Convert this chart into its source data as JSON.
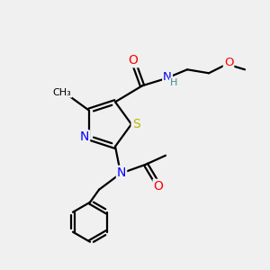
{
  "bg_color": "#f0f0f0",
  "atom_colors": {
    "C": "#000000",
    "N": "#0000ff",
    "O": "#ff0000",
    "S": "#b8b800",
    "H": "#4a8a8a"
  },
  "bond_color": "#000000",
  "figsize": [
    3.0,
    3.0
  ],
  "dpi": 100
}
